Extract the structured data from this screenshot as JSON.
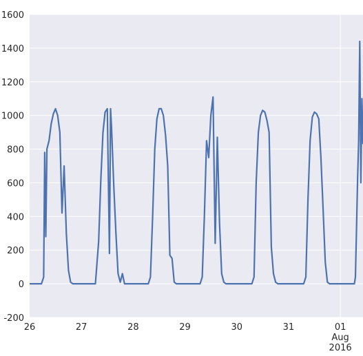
{
  "chart_data": {
    "type": "line",
    "title": "",
    "xlabel": "",
    "ylabel": "",
    "ylim": [
      -200,
      1600
    ],
    "yticks": [
      -200,
      0,
      200,
      400,
      600,
      800,
      1000,
      1200,
      1400,
      1600
    ],
    "xlim": [
      "2016-07-26T00:00",
      "2016-08-01T10:30"
    ],
    "xticks": [
      {
        "date": "2016-07-26",
        "label": "26"
      },
      {
        "date": "2016-07-27",
        "label": "27"
      },
      {
        "date": "2016-07-28",
        "label": "28"
      },
      {
        "date": "2016-07-29",
        "label": "29"
      },
      {
        "date": "2016-07-30",
        "label": "30"
      },
      {
        "date": "2016-07-31",
        "label": "31"
      },
      {
        "date": "2016-08-01",
        "label": "01",
        "sublabels": [
          "Aug",
          "2016"
        ]
      }
    ],
    "grid": true,
    "background": "#eaeaf2",
    "line_color": "#4c72b0",
    "series": [
      {
        "x": [
          "2016-07-26T00:00",
          "2016-07-26T05:30",
          "2016-07-26T06:30",
          "2016-07-26T07:00",
          "2016-07-26T07:30",
          "2016-07-26T08:00",
          "2016-07-26T09:00",
          "2016-07-26T10:00",
          "2016-07-26T11:00",
          "2016-07-26T12:00",
          "2016-07-26T13:00",
          "2016-07-26T14:00",
          "2016-07-26T15:00",
          "2016-07-26T16:00",
          "2016-07-26T17:00",
          "2016-07-26T18:00",
          "2016-07-26T19:00",
          "2016-07-26T20:00",
          "2016-07-27T05:30",
          "2016-07-27T06:30",
          "2016-07-27T08:00",
          "2016-07-27T09:00",
          "2016-07-27T10:00",
          "2016-07-27T11:00",
          "2016-07-27T12:00",
          "2016-07-27T13:00",
          "2016-07-27T13:30",
          "2016-07-27T14:00",
          "2016-07-27T15:00",
          "2016-07-27T16:00",
          "2016-07-27T17:00",
          "2016-07-27T18:00",
          "2016-07-27T19:00",
          "2016-07-27T20:00",
          "2016-07-28T05:30",
          "2016-07-28T07:00",
          "2016-07-28T08:00",
          "2016-07-28T09:00",
          "2016-07-28T10:00",
          "2016-07-28T11:00",
          "2016-07-28T12:00",
          "2016-07-28T13:00",
          "2016-07-28T14:00",
          "2016-07-28T15:00",
          "2016-07-28T16:00",
          "2016-07-28T17:00",
          "2016-07-28T18:00",
          "2016-07-28T19:00",
          "2016-07-28T20:00",
          "2016-07-29T05:30",
          "2016-07-29T07:00",
          "2016-07-29T08:00",
          "2016-07-29T09:00",
          "2016-07-29T10:00",
          "2016-07-29T11:00",
          "2016-07-29T12:00",
          "2016-07-29T13:00",
          "2016-07-29T14:00",
          "2016-07-29T15:00",
          "2016-07-29T16:00",
          "2016-07-29T17:00",
          "2016-07-29T18:00",
          "2016-07-29T19:00",
          "2016-07-29T20:00",
          "2016-07-30T05:30",
          "2016-07-30T07:00",
          "2016-07-30T08:00",
          "2016-07-30T09:00",
          "2016-07-30T10:00",
          "2016-07-30T11:00",
          "2016-07-30T12:00",
          "2016-07-30T13:00",
          "2016-07-30T14:00",
          "2016-07-30T15:00",
          "2016-07-30T16:00",
          "2016-07-30T17:00",
          "2016-07-30T18:00",
          "2016-07-30T19:00",
          "2016-07-30T20:00",
          "2016-07-31T05:30",
          "2016-07-31T07:00",
          "2016-07-31T08:00",
          "2016-07-31T09:00",
          "2016-07-31T10:00",
          "2016-07-31T11:00",
          "2016-07-31T12:00",
          "2016-07-31T13:00",
          "2016-07-31T14:00",
          "2016-07-31T15:00",
          "2016-07-31T16:00",
          "2016-07-31T17:00",
          "2016-07-31T18:00",
          "2016-07-31T19:00",
          "2016-07-31T20:00",
          "2016-08-01T05:30",
          "2016-08-01T06:30",
          "2016-08-01T07:00",
          "2016-08-01T07:30",
          "2016-08-01T08:00",
          "2016-08-01T08:30",
          "2016-08-01T09:00",
          "2016-08-01T09:30",
          "2016-08-01T10:00",
          "2016-08-01T10:30"
        ],
        "values": [
          0,
          0,
          40,
          780,
          280,
          800,
          850,
          950,
          1010,
          1040,
          1000,
          900,
          420,
          700,
          300,
          80,
          10,
          0,
          0,
          0,
          250,
          620,
          900,
          1020,
          1040,
          180,
          1040,
          920,
          580,
          300,
          60,
          10,
          60,
          0,
          0,
          0,
          40,
          400,
          800,
          980,
          1040,
          1040,
          1000,
          880,
          700,
          170,
          150,
          10,
          0,
          0,
          0,
          40,
          400,
          850,
          750,
          1000,
          1110,
          240,
          870,
          360,
          60,
          10,
          0,
          0,
          0,
          0,
          40,
          600,
          900,
          1000,
          1030,
          1020,
          970,
          900,
          220,
          60,
          10,
          0,
          0,
          0,
          0,
          40,
          500,
          850,
          990,
          1020,
          1010,
          980,
          750,
          450,
          130,
          10,
          0,
          0,
          0,
          0,
          40,
          330,
          630,
          850,
          1440,
          600,
          1100,
          830
        ]
      }
    ]
  }
}
